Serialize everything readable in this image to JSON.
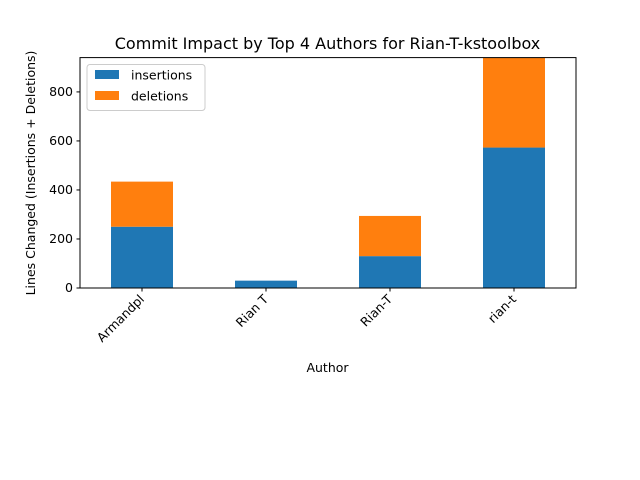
{
  "chart_data": {
    "type": "bar",
    "stacked": true,
    "title": "Commit Impact by Top 4 Authors for Rian-T-kstoolbox",
    "xlabel": "Author",
    "ylabel": "Lines Changed (Insertions + Deletions)",
    "categories": [
      "Armandpl",
      "Rian T",
      "Rian-T",
      "rian-t"
    ],
    "series": [
      {
        "name": "insertions",
        "color": "#1f77b4",
        "values": [
          250,
          30,
          130,
          573
        ]
      },
      {
        "name": "deletions",
        "color": "#ff7f0e",
        "values": [
          184,
          0,
          164,
          367
        ]
      }
    ],
    "ylim": [
      0,
      940
    ],
    "yticks": [
      0,
      200,
      400,
      600,
      800
    ],
    "grid": false,
    "legend_position": "top-left"
  }
}
